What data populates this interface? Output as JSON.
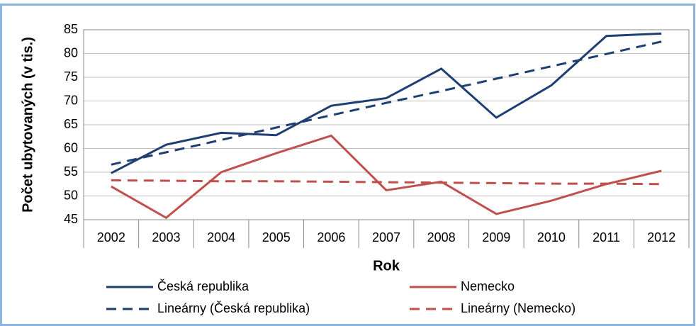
{
  "chart_data": {
    "type": "line",
    "xlabel": "Rok",
    "ylabel": "Počet ubytovaných (v tis.)",
    "categories": [
      "2002",
      "2003",
      "2004",
      "2005",
      "2006",
      "2007",
      "2008",
      "2009",
      "2010",
      "2011",
      "2012"
    ],
    "series": [
      {
        "name": "Česká republika",
        "color": "#1f3f73",
        "style": "solid",
        "values": [
          54.8,
          60.8,
          63.3,
          62.8,
          69.0,
          70.6,
          76.8,
          66.5,
          73.3,
          83.7,
          84.2
        ]
      },
      {
        "name": "Nemecko",
        "color": "#c0504d",
        "style": "solid",
        "values": [
          52.0,
          45.4,
          55.0,
          59.0,
          62.7,
          51.2,
          53.0,
          46.2,
          49.0,
          52.5,
          55.3
        ]
      },
      {
        "name": "Lineárny (Česká republika)",
        "color": "#1f3f73",
        "style": "dashed",
        "values": [
          56.6,
          59.2,
          61.8,
          64.4,
          67.0,
          69.6,
          72.1,
          74.7,
          77.3,
          79.9,
          82.5
        ]
      },
      {
        "name": "Lineárny (Nemecko)",
        "color": "#c0504d",
        "style": "dashed",
        "values": [
          53.3,
          53.2,
          53.1,
          53.1,
          53.0,
          52.9,
          52.8,
          52.7,
          52.6,
          52.6,
          52.5
        ]
      }
    ],
    "ylim": [
      45,
      85
    ],
    "yticks": [
      45,
      50,
      55,
      60,
      65,
      70,
      75,
      80,
      85
    ],
    "grid": true
  }
}
